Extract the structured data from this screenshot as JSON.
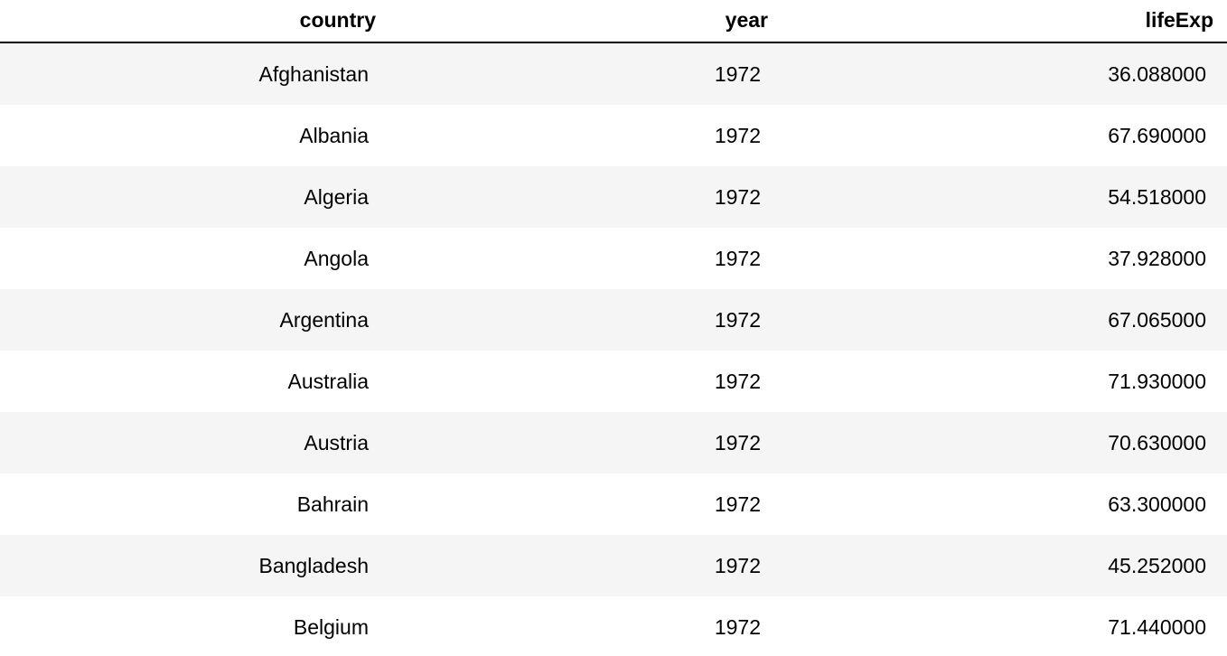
{
  "table": {
    "columns": [
      "country",
      "year",
      "lifeExp"
    ],
    "rows": [
      {
        "country": "Afghanistan",
        "year": "1972",
        "lifeExp": "36.088000"
      },
      {
        "country": "Albania",
        "year": "1972",
        "lifeExp": "67.690000"
      },
      {
        "country": "Algeria",
        "year": "1972",
        "lifeExp": "54.518000"
      },
      {
        "country": "Angola",
        "year": "1972",
        "lifeExp": "37.928000"
      },
      {
        "country": "Argentina",
        "year": "1972",
        "lifeExp": "67.065000"
      },
      {
        "country": "Australia",
        "year": "1972",
        "lifeExp": "71.930000"
      },
      {
        "country": "Austria",
        "year": "1972",
        "lifeExp": "70.630000"
      },
      {
        "country": "Bahrain",
        "year": "1972",
        "lifeExp": "63.300000"
      },
      {
        "country": "Bangladesh",
        "year": "1972",
        "lifeExp": "45.252000"
      },
      {
        "country": "Belgium",
        "year": "1972",
        "lifeExp": "71.440000"
      }
    ]
  },
  "colors": {
    "stripe": "#f5f5f5",
    "background": "#ffffff",
    "header_rule": "#000000"
  }
}
